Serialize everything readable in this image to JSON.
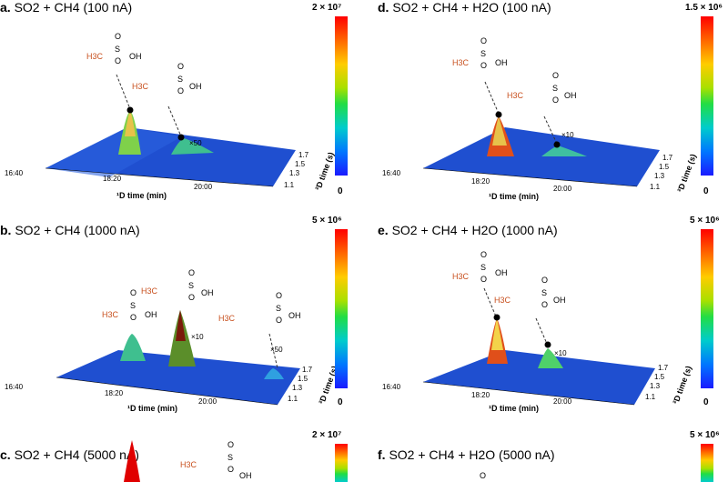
{
  "panels": {
    "a": {
      "letter": "a.",
      "title": "SO2 + CH4 (100 nA)",
      "cmax": "2 × 10⁷",
      "cmin": "0",
      "mult1": "×50"
    },
    "d": {
      "letter": "d.",
      "title": "SO2 + CH4 + H2O (100 nA)",
      "cmax": "1.5 × 10⁶",
      "cmin": "0",
      "mult1": "×10"
    },
    "b": {
      "letter": "b.",
      "title": "SO2 + CH4 (1000 nA)",
      "cmax": "5 × 10⁶",
      "cmin": "0",
      "mult1": "×10",
      "mult2": "×50"
    },
    "e": {
      "letter": "e.",
      "title": "SO2 + CH4 + H2O (1000 nA)",
      "cmax": "5 × 10⁶",
      "cmin": "0",
      "mult1": "×10"
    },
    "c": {
      "letter": "c.",
      "title": "SO2 + CH4 (5000 nA)",
      "cmax": "2 × 10⁷"
    },
    "f": {
      "letter": "f.",
      "title": "SO2 + CH4 + H2O (5000 nA)",
      "cmax": "5 × 10⁶"
    }
  },
  "axes": {
    "x_label": "¹D time (min)",
    "y_label": "²D time (s)",
    "x_ticks": [
      "16:40",
      "18:20",
      "20:00"
    ],
    "y_ticks": [
      "1.7",
      "1.5",
      "1.3",
      "1.1"
    ]
  },
  "molecules": {
    "ch3": "H3C",
    "s": "S",
    "o": "O",
    "oh": "OH"
  },
  "colors": {
    "chem_red": "#c8501e",
    "surface": "#1f4fd0",
    "multiplier": "#9a9a9a"
  }
}
